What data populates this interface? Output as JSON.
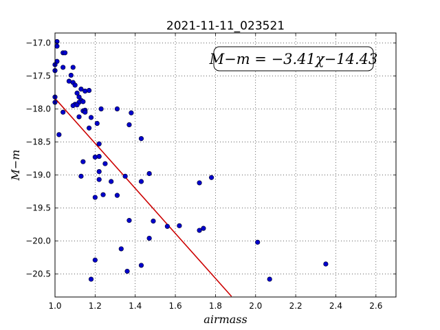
{
  "chart_data": {
    "type": "scatter",
    "title": "2021-11-11_023521",
    "xlabel": "airmass",
    "ylabel": "M−m",
    "xlim": [
      1.0,
      2.7
    ],
    "ylim": [
      -20.85,
      -16.85
    ],
    "x_ticks": [
      1.0,
      1.2,
      1.4,
      1.6,
      1.8,
      2.0,
      2.2,
      2.4,
      2.6
    ],
    "x_tick_labels": [
      "1.0",
      "1.2",
      "1.4",
      "1.6",
      "1.8",
      "2.0",
      "2.2",
      "2.4",
      "2.6"
    ],
    "y_ticks": [
      -17.0,
      -17.5,
      -18.0,
      -18.5,
      -19.0,
      -19.5,
      -20.0,
      -20.5
    ],
    "y_tick_labels": [
      "−17.0",
      "−17.5",
      "−18.0",
      "−18.5",
      "−19.0",
      "−19.5",
      "−20.0",
      "−20.5"
    ],
    "grid": true,
    "annotation": "M−m = −3.41χ−14.43",
    "fit": {
      "slope": -3.41,
      "intercept": -14.43,
      "x_range": [
        1.0,
        1.88
      ]
    },
    "point_color": "#0000cc",
    "line_color": "#cc0000",
    "points": [
      [
        1.01,
        -16.98
      ],
      [
        1.01,
        -17.05
      ],
      [
        1.04,
        -17.15
      ],
      [
        1.05,
        -17.15
      ],
      [
        1.01,
        -17.28
      ],
      [
        1.0,
        -17.33
      ],
      [
        1.04,
        -17.37
      ],
      [
        1.09,
        -17.37
      ],
      [
        1.0,
        -17.42
      ],
      [
        1.08,
        -17.49
      ],
      [
        1.07,
        -17.58
      ],
      [
        1.09,
        -17.6
      ],
      [
        1.1,
        -17.64
      ],
      [
        1.13,
        -17.7
      ],
      [
        1.11,
        -17.76
      ],
      [
        1.15,
        -17.73
      ],
      [
        1.17,
        -17.72
      ],
      [
        1.12,
        -17.82
      ],
      [
        1.0,
        -17.82
      ],
      [
        1.13,
        -17.87
      ],
      [
        1.12,
        -17.9
      ],
      [
        1.14,
        -17.89
      ],
      [
        1.1,
        -17.93
      ],
      [
        1.09,
        -17.95
      ],
      [
        1.11,
        -17.94
      ],
      [
        1.0,
        -17.9
      ],
      [
        1.04,
        -18.05
      ],
      [
        1.14,
        -18.03
      ],
      [
        1.15,
        -18.02
      ],
      [
        1.15,
        -18.05
      ],
      [
        1.12,
        -18.12
      ],
      [
        1.18,
        -18.13
      ],
      [
        1.23,
        -18.0
      ],
      [
        1.31,
        -18.0
      ],
      [
        1.38,
        -18.06
      ],
      [
        1.21,
        -18.22
      ],
      [
        1.17,
        -18.29
      ],
      [
        1.37,
        -18.24
      ],
      [
        1.02,
        -18.39
      ],
      [
        1.43,
        -18.45
      ],
      [
        1.22,
        -18.53
      ],
      [
        1.2,
        -18.73
      ],
      [
        1.22,
        -18.72
      ],
      [
        1.14,
        -18.8
      ],
      [
        1.25,
        -18.83
      ],
      [
        1.22,
        -18.95
      ],
      [
        1.13,
        -19.02
      ],
      [
        1.35,
        -19.02
      ],
      [
        1.47,
        -18.98
      ],
      [
        1.22,
        -19.07
      ],
      [
        1.28,
        -19.1
      ],
      [
        1.43,
        -19.1
      ],
      [
        1.72,
        -19.12
      ],
      [
        1.78,
        -19.04
      ],
      [
        1.24,
        -19.3
      ],
      [
        1.2,
        -19.34
      ],
      [
        1.31,
        -19.31
      ],
      [
        1.37,
        -19.69
      ],
      [
        1.49,
        -19.7
      ],
      [
        1.56,
        -19.78
      ],
      [
        1.62,
        -19.77
      ],
      [
        1.72,
        -19.84
      ],
      [
        1.74,
        -19.81
      ],
      [
        1.47,
        -19.96
      ],
      [
        2.01,
        -20.02
      ],
      [
        1.33,
        -20.12
      ],
      [
        1.2,
        -20.29
      ],
      [
        1.43,
        -20.37
      ],
      [
        2.35,
        -20.35
      ],
      [
        1.36,
        -20.46
      ],
      [
        1.18,
        -20.58
      ],
      [
        2.07,
        -20.58
      ]
    ]
  }
}
